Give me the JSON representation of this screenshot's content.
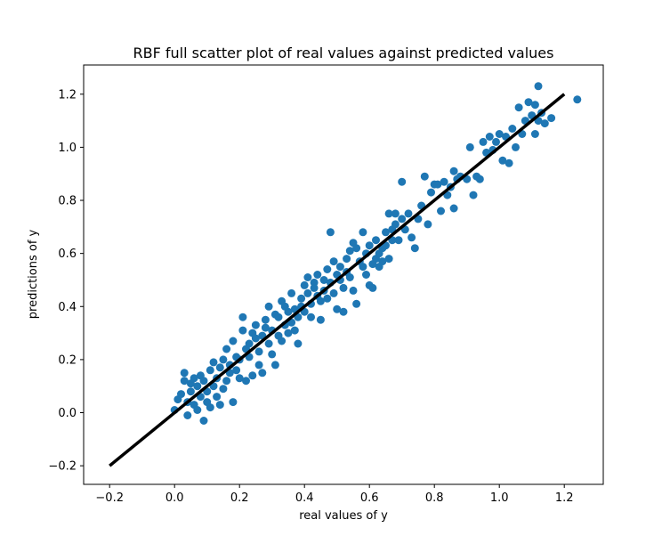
{
  "chart_data": {
    "type": "scatter",
    "title": "RBF full scatter plot of real values against predicted values",
    "xlabel": "real values of y",
    "ylabel": "predictions of y",
    "xlim": [
      -0.28,
      1.32
    ],
    "ylim": [
      -0.27,
      1.31
    ],
    "x_ticks": [
      -0.2,
      0.0,
      0.2,
      0.4,
      0.6,
      0.8,
      1.0,
      1.2
    ],
    "y_ticks": [
      -0.2,
      0.0,
      0.2,
      0.4,
      0.6,
      0.8,
      1.0,
      1.2
    ],
    "x_tick_labels": [
      "−0.2",
      "0.0",
      "0.2",
      "0.4",
      "0.6",
      "0.8",
      "1.0",
      "1.2"
    ],
    "y_tick_labels": [
      "−0.2",
      "0.0",
      "0.2",
      "0.4",
      "0.6",
      "0.8",
      "1.0",
      "1.2"
    ],
    "grid": false,
    "marker_color": "#1f77b4",
    "line_color": "#000000",
    "reference_line": {
      "x": [
        -0.2,
        1.2
      ],
      "y": [
        -0.2,
        1.2
      ]
    },
    "series": [
      {
        "points": [
          [
            0.0,
            0.01
          ],
          [
            0.01,
            0.05
          ],
          [
            0.02,
            0.07
          ],
          [
            0.03,
            0.12
          ],
          [
            0.03,
            0.15
          ],
          [
            0.04,
            -0.01
          ],
          [
            0.04,
            0.04
          ],
          [
            0.05,
            0.08
          ],
          [
            0.05,
            0.11
          ],
          [
            0.06,
            0.03
          ],
          [
            0.06,
            0.13
          ],
          [
            0.07,
            0.01
          ],
          [
            0.07,
            0.1
          ],
          [
            0.08,
            0.14
          ],
          [
            0.08,
            0.06
          ],
          [
            0.09,
            0.12
          ],
          [
            0.09,
            -0.03
          ],
          [
            0.1,
            0.08
          ],
          [
            0.1,
            0.04
          ],
          [
            0.11,
            0.16
          ],
          [
            0.11,
            0.02
          ],
          [
            0.12,
            0.1
          ],
          [
            0.12,
            0.19
          ],
          [
            0.13,
            0.06
          ],
          [
            0.13,
            0.13
          ],
          [
            0.14,
            0.17
          ],
          [
            0.14,
            0.03
          ],
          [
            0.15,
            0.2
          ],
          [
            0.15,
            0.09
          ],
          [
            0.16,
            0.24
          ],
          [
            0.16,
            0.12
          ],
          [
            0.17,
            0.18
          ],
          [
            0.17,
            0.15
          ],
          [
            0.18,
            0.27
          ],
          [
            0.18,
            0.04
          ],
          [
            0.19,
            0.21
          ],
          [
            0.19,
            0.16
          ],
          [
            0.2,
            0.2
          ],
          [
            0.2,
            0.13
          ],
          [
            0.21,
            0.36
          ],
          [
            0.21,
            0.31
          ],
          [
            0.22,
            0.12
          ],
          [
            0.22,
            0.24
          ],
          [
            0.23,
            0.26
          ],
          [
            0.23,
            0.21
          ],
          [
            0.24,
            0.3
          ],
          [
            0.24,
            0.14
          ],
          [
            0.25,
            0.33
          ],
          [
            0.25,
            0.28
          ],
          [
            0.26,
            0.18
          ],
          [
            0.26,
            0.23
          ],
          [
            0.27,
            0.29
          ],
          [
            0.27,
            0.15
          ],
          [
            0.28,
            0.32
          ],
          [
            0.28,
            0.35
          ],
          [
            0.29,
            0.26
          ],
          [
            0.29,
            0.4
          ],
          [
            0.3,
            0.22
          ],
          [
            0.3,
            0.31
          ],
          [
            0.31,
            0.37
          ],
          [
            0.31,
            0.18
          ],
          [
            0.32,
            0.29
          ],
          [
            0.32,
            0.36
          ],
          [
            0.33,
            0.42
          ],
          [
            0.33,
            0.27
          ],
          [
            0.34,
            0.33
          ],
          [
            0.34,
            0.4
          ],
          [
            0.35,
            0.3
          ],
          [
            0.35,
            0.38
          ],
          [
            0.36,
            0.34
          ],
          [
            0.36,
            0.45
          ],
          [
            0.37,
            0.31
          ],
          [
            0.37,
            0.39
          ],
          [
            0.38,
            0.36
          ],
          [
            0.38,
            0.26
          ],
          [
            0.39,
            0.43
          ],
          [
            0.39,
            0.4
          ],
          [
            0.4,
            0.38
          ],
          [
            0.4,
            0.48
          ],
          [
            0.41,
            0.45
          ],
          [
            0.41,
            0.51
          ],
          [
            0.42,
            0.41
          ],
          [
            0.42,
            0.36
          ],
          [
            0.43,
            0.49
          ],
          [
            0.43,
            0.47
          ],
          [
            0.44,
            0.52
          ],
          [
            0.44,
            0.44
          ],
          [
            0.45,
            0.42
          ],
          [
            0.45,
            0.35
          ],
          [
            0.46,
            0.5
          ],
          [
            0.46,
            0.46
          ],
          [
            0.47,
            0.43
          ],
          [
            0.47,
            0.54
          ],
          [
            0.48,
            0.49
          ],
          [
            0.48,
            0.68
          ],
          [
            0.49,
            0.57
          ],
          [
            0.49,
            0.45
          ],
          [
            0.5,
            0.52
          ],
          [
            0.5,
            0.39
          ],
          [
            0.51,
            0.55
          ],
          [
            0.51,
            0.5
          ],
          [
            0.52,
            0.47
          ],
          [
            0.52,
            0.38
          ],
          [
            0.53,
            0.58
          ],
          [
            0.53,
            0.53
          ],
          [
            0.54,
            0.61
          ],
          [
            0.54,
            0.51
          ],
          [
            0.55,
            0.64
          ],
          [
            0.55,
            0.46
          ],
          [
            0.56,
            0.62
          ],
          [
            0.56,
            0.41
          ],
          [
            0.57,
            0.57
          ],
          [
            0.58,
            0.68
          ],
          [
            0.58,
            0.55
          ],
          [
            0.59,
            0.6
          ],
          [
            0.59,
            0.52
          ],
          [
            0.6,
            0.63
          ],
          [
            0.6,
            0.48
          ],
          [
            0.61,
            0.56
          ],
          [
            0.61,
            0.47
          ],
          [
            0.62,
            0.58
          ],
          [
            0.62,
            0.65
          ],
          [
            0.63,
            0.6
          ],
          [
            0.63,
            0.55
          ],
          [
            0.64,
            0.62
          ],
          [
            0.64,
            0.57
          ],
          [
            0.65,
            0.68
          ],
          [
            0.65,
            0.63
          ],
          [
            0.66,
            0.75
          ],
          [
            0.66,
            0.58
          ],
          [
            0.67,
            0.69
          ],
          [
            0.67,
            0.65
          ],
          [
            0.68,
            0.71
          ],
          [
            0.68,
            0.75
          ],
          [
            0.69,
            0.65
          ],
          [
            0.7,
            0.87
          ],
          [
            0.7,
            0.73
          ],
          [
            0.71,
            0.69
          ],
          [
            0.72,
            0.75
          ],
          [
            0.73,
            0.66
          ],
          [
            0.74,
            0.62
          ],
          [
            0.75,
            0.73
          ],
          [
            0.76,
            0.78
          ],
          [
            0.77,
            0.89
          ],
          [
            0.78,
            0.71
          ],
          [
            0.79,
            0.83
          ],
          [
            0.8,
            0.86
          ],
          [
            0.81,
            0.86
          ],
          [
            0.82,
            0.76
          ],
          [
            0.83,
            0.87
          ],
          [
            0.84,
            0.82
          ],
          [
            0.85,
            0.85
          ],
          [
            0.86,
            0.91
          ],
          [
            0.86,
            0.77
          ],
          [
            0.87,
            0.88
          ],
          [
            0.88,
            0.89
          ],
          [
            0.9,
            0.88
          ],
          [
            0.91,
            1.0
          ],
          [
            0.92,
            0.82
          ],
          [
            0.93,
            0.89
          ],
          [
            0.94,
            0.88
          ],
          [
            0.95,
            1.02
          ],
          [
            0.96,
            0.98
          ],
          [
            0.97,
            1.04
          ],
          [
            0.98,
            0.99
          ],
          [
            0.99,
            1.02
          ],
          [
            1.0,
            1.05
          ],
          [
            1.01,
            0.95
          ],
          [
            1.02,
            1.04
          ],
          [
            1.03,
            0.94
          ],
          [
            1.04,
            1.07
          ],
          [
            1.05,
            1.0
          ],
          [
            1.06,
            1.15
          ],
          [
            1.07,
            1.05
          ],
          [
            1.08,
            1.1
          ],
          [
            1.09,
            1.17
          ],
          [
            1.1,
            1.12
          ],
          [
            1.11,
            1.05
          ],
          [
            1.11,
            1.16
          ],
          [
            1.12,
            1.1
          ],
          [
            1.12,
            1.23
          ],
          [
            1.13,
            1.13
          ],
          [
            1.14,
            1.09
          ],
          [
            1.16,
            1.11
          ],
          [
            1.24,
            1.18
          ]
        ]
      }
    ]
  }
}
